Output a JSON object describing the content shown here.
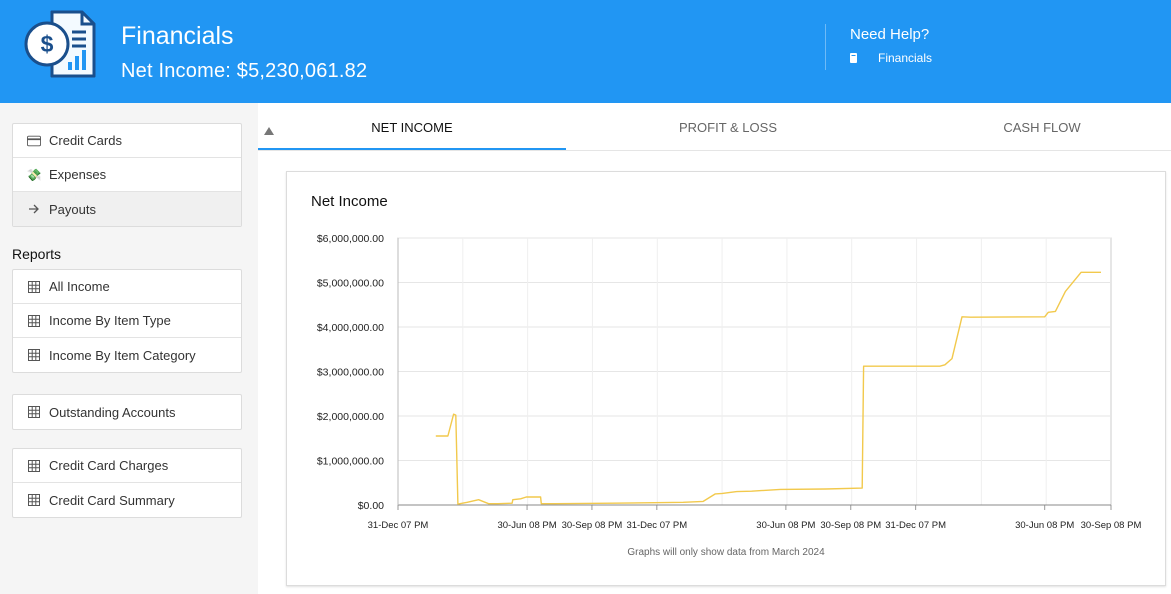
{
  "header": {
    "title": "Financials",
    "subtitle": "Net Income: $5,230,061.82",
    "help_title": "Need Help?",
    "help_link": "Financials"
  },
  "sidebar": {
    "top_items": [
      {
        "label": "Credit Cards",
        "icon": "credit-card-icon"
      },
      {
        "label": "Expenses",
        "icon": "expenses-icon"
      },
      {
        "label": "Payouts",
        "icon": "arrow-right-icon"
      }
    ],
    "reports_title": "Reports",
    "reports": [
      {
        "label": "All Income",
        "icon": "grid-icon"
      },
      {
        "label": "Income By Item Type",
        "icon": "grid-icon"
      },
      {
        "label": "Income By Item Category",
        "icon": "grid-icon"
      }
    ],
    "accounts": [
      {
        "label": "Outstanding Accounts",
        "icon": "grid-icon"
      }
    ],
    "cards": [
      {
        "label": "Credit Card Charges",
        "icon": "grid-icon"
      },
      {
        "label": "Credit Card Summary",
        "icon": "grid-icon"
      }
    ]
  },
  "tabs": [
    "NET INCOME",
    "PROFIT & LOSS",
    "CASH FLOW"
  ],
  "active_tab": 0,
  "card": {
    "title": "Net Income",
    "note": "Graphs will only show data from March 2024"
  },
  "colors": {
    "brand": "#2196f3",
    "line": "#f2c94c"
  },
  "chart_data": {
    "type": "line",
    "ylim": [
      0,
      6000000
    ],
    "y_ticks": [
      "$0.00",
      "$1,000,000.00",
      "$2,000,000.00",
      "$3,000,000.00",
      "$4,000,000.00",
      "$5,000,000.00",
      "$6,000,000.00"
    ],
    "x_ticks": [
      "31-Dec 07 PM",
      "30-Jun 08 PM",
      "30-Sep 08 PM",
      "31-Dec 07 PM",
      "30-Jun 08 PM",
      "30-Sep 08 PM",
      "31-Dec 07 PM",
      "30-Jun 08 PM",
      "30-Sep 08 PM"
    ],
    "x_tick_positions": [
      0,
      0.181,
      0.272,
      0.363,
      0.544,
      0.635,
      0.726,
      0.907,
      1.0
    ],
    "x_range": [
      0,
      1
    ],
    "grid": true,
    "series": [
      {
        "x": [
          0.053,
          0.07,
          0.078,
          0.081,
          0.084,
          0.097,
          0.113,
          0.127,
          0.14,
          0.16,
          0.161,
          0.172,
          0.18,
          0.2,
          0.201,
          0.22,
          0.3,
          0.4,
          0.428,
          0.445,
          0.455,
          0.475,
          0.496,
          0.536,
          0.6,
          0.651,
          0.653,
          0.76,
          0.767,
          0.777,
          0.791,
          0.803,
          0.907,
          0.912,
          0.922,
          0.936,
          0.958,
          0.986
        ],
        "y": [
          1550000,
          1550000,
          2040000,
          2020000,
          20000,
          60000,
          120000,
          30000,
          30000,
          40000,
          120000,
          140000,
          180000,
          180000,
          30000,
          30000,
          40000,
          60000,
          80000,
          250000,
          260000,
          300000,
          310000,
          350000,
          360000,
          380000,
          3120000,
          3120000,
          3150000,
          3290000,
          4230000,
          4220000,
          4230000,
          4330000,
          4350000,
          4800000,
          5230000,
          5230000
        ]
      }
    ]
  }
}
